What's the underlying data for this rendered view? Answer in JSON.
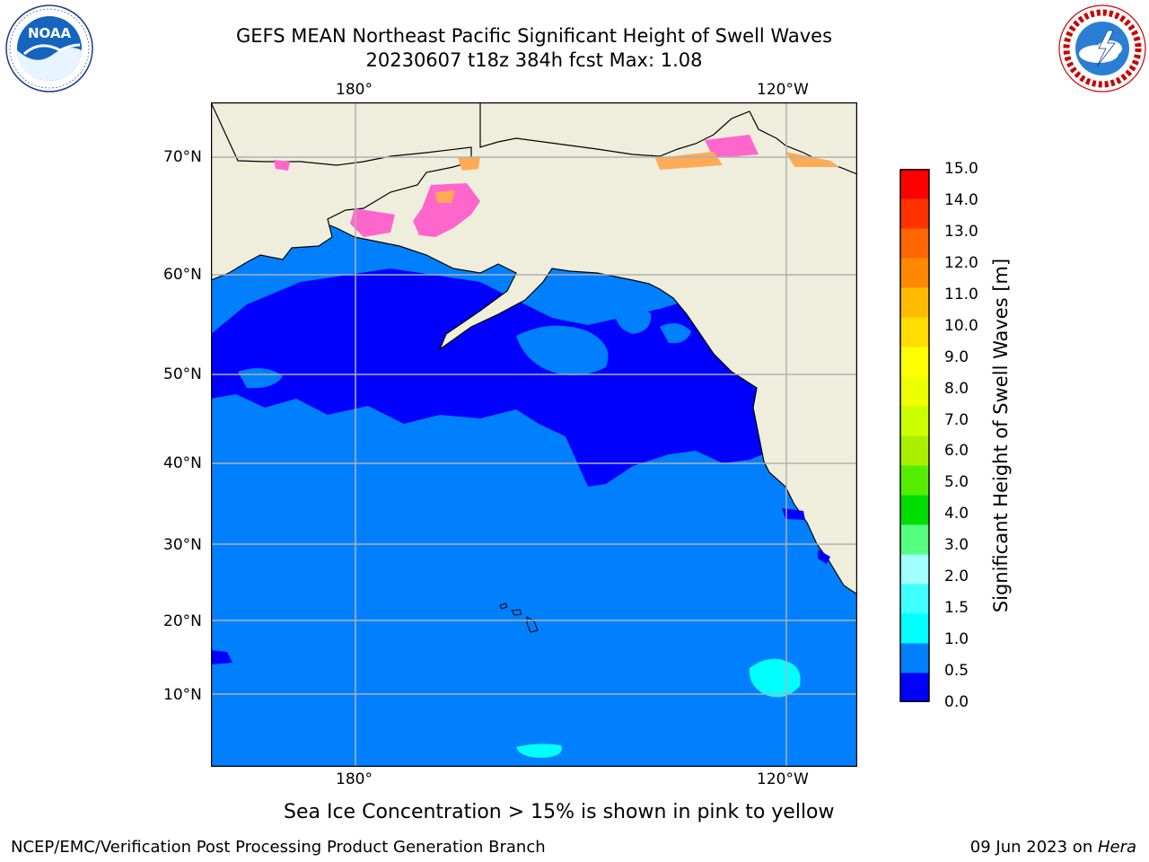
{
  "header": {
    "title_line1": "GEFS MEAN Northeast Pacific Significant Height of Swell Waves",
    "title_line2": "20230607 t18z 384h fcst   Max: 1.08"
  },
  "logos": {
    "left": {
      "icon": "noaa-logo",
      "center_text": "NOAA",
      "ring_text": "NATIONAL OCEANIC AND ATMOSPHERIC ADMINISTRATION · U.S. DEPARTMENT OF COMMERCE"
    },
    "right": {
      "icon": "nws-logo",
      "ring_text": "NATIONAL WEATHER SERVICE"
    }
  },
  "map": {
    "lon_labels_top": [
      "180°",
      "120°W"
    ],
    "lon_labels_bottom": [
      "180°",
      "120°W"
    ],
    "lat_labels": [
      "70°N",
      "60°N",
      "50°N",
      "40°N",
      "30°N",
      "20°N",
      "10°N"
    ],
    "colors": {
      "ocean_low": "#0000ff",
      "ocean_mid": "#0080ff",
      "ocean_high": "#00ffff",
      "land": "#efeedd",
      "sea_ice": "#ff66cc",
      "grid": "#b0b0b0"
    }
  },
  "colorbar": {
    "ticks": [
      "15.0",
      "14.0",
      "13.0",
      "12.0",
      "11.0",
      "10.0",
      "9.0",
      "8.0",
      "7.0",
      "6.0",
      "5.0",
      "4.0",
      "3.0",
      "2.0",
      "1.5",
      "1.0",
      "0.5",
      "0.0"
    ],
    "colors_bottom_to_top": [
      "#0000ff",
      "#0080ff",
      "#00ffff",
      "#40ffff",
      "#a0ffff",
      "#55ff80",
      "#00dd00",
      "#55ee00",
      "#aaee00",
      "#ccff00",
      "#eeff00",
      "#ffff00",
      "#ffdd00",
      "#ffbb00",
      "#ff8800",
      "#ff6600",
      "#ff3300",
      "#ff0000"
    ],
    "label": "Significant Height of Swell Waves [m]"
  },
  "note": "Sea Ice Concentration > 15% is shown in pink to yellow",
  "footer": {
    "left": "NCEP/EMC/Verification Post Processing Product Generation Branch",
    "right_date": "09 Jun 2023 on ",
    "right_machine": "Hera"
  }
}
